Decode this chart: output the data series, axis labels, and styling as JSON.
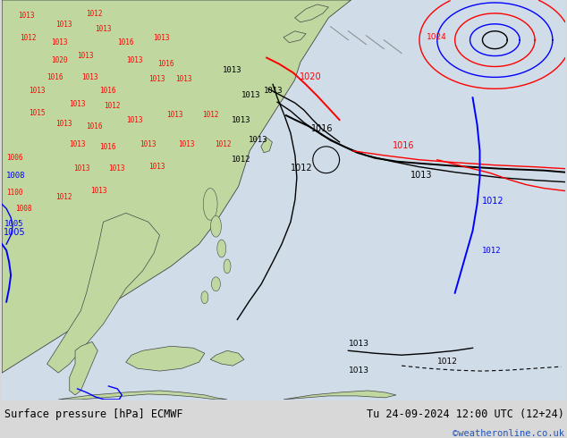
{
  "title_left": "Surface pressure [hPa] ECMWF",
  "title_right": "Tu 24-09-2024 12:00 UTC (12+24)",
  "watermark": "©weatheronline.co.uk",
  "sea_color": "#d8e8f0",
  "land_color": "#c8dca8",
  "land_color2": "#b8cc98",
  "footer_bg": "#d8d8d8",
  "figsize": [
    6.34,
    4.9
  ],
  "dpi": 100,
  "map_bg": "#e0eaf0"
}
